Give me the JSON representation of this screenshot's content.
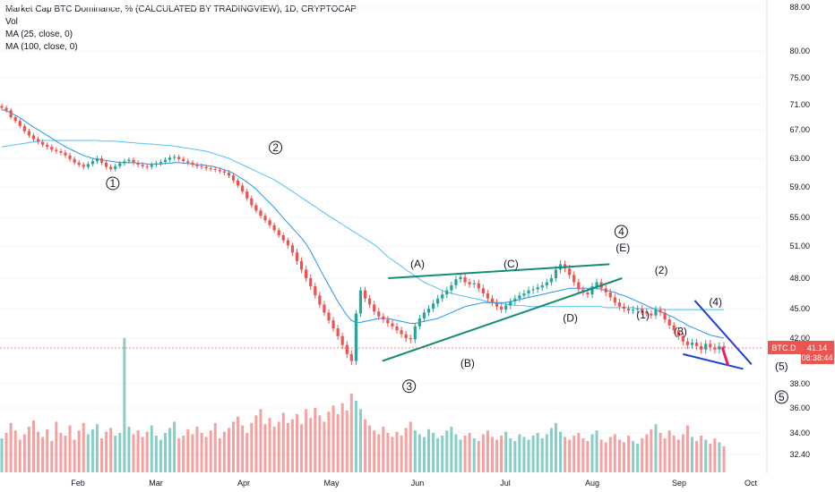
{
  "legend": {
    "title": "Market Cap BTC Dominance, % (CALCULATED BY TRADINGVIEW), 1D, CRYPTOCAP",
    "vol": "Vol",
    "ma25": "MA (25, close, 0)",
    "ma100": "MA (100, close, 0)"
  },
  "price_tag": {
    "symbol": "BTC.D",
    "value": "41.14",
    "countdown": "08:38:44"
  },
  "colors": {
    "up": "#26a69a",
    "down": "#ef5350",
    "ma25": "#2196f3",
    "ma100": "#4fc3f7",
    "pattern_lines": "#138d75",
    "wedge_lines": "#1e40d8",
    "projection": "#e91e63",
    "price_tag_bg": "#ef5350"
  },
  "chart_data": {
    "type": "candlestick",
    "y_axis_ticks": [
      "88.00",
      "80.00",
      "75.00",
      "71.00",
      "67.00",
      "63.00",
      "59.00",
      "55.00",
      "51.00",
      "48.00",
      "45.00",
      "42.00",
      "38.00",
      "36.00",
      "34.00",
      "32.40"
    ],
    "x_axis_ticks": [
      "Feb",
      "Mar",
      "Apr",
      "May",
      "Jun",
      "Jul",
      "Aug",
      "Sep",
      "Oct"
    ],
    "last_price": 41.14,
    "close_series": [
      70.5,
      70.1,
      69.0,
      68.4,
      67.6,
      66.8,
      66.2,
      65.7,
      65.3,
      64.9,
      64.6,
      64.2,
      64.0,
      63.8,
      63.4,
      62.9,
      62.4,
      62.1,
      61.8,
      62.2,
      62.6,
      63.0,
      62.4,
      61.8,
      61.5,
      61.9,
      62.3,
      62.6,
      62.8,
      62.4,
      62.1,
      61.9,
      61.8,
      62.1,
      62.3,
      62.5,
      62.8,
      63.1,
      63.2,
      62.9,
      62.6,
      62.4,
      62.1,
      61.9,
      61.8,
      61.6,
      61.5,
      61.4,
      61.2,
      61.0,
      60.6,
      59.9,
      59.2,
      58.4,
      57.5,
      56.6,
      55.9,
      55.2,
      54.6,
      53.9,
      53.2,
      52.5,
      51.8,
      51.1,
      50.4,
      49.6,
      48.8,
      48.0,
      47.2,
      46.3,
      45.4,
      44.6,
      43.8,
      43.0,
      42.2,
      41.4,
      40.6,
      40.0,
      44.5,
      46.8,
      46.0,
      45.4,
      44.7,
      44.2,
      43.9,
      43.5,
      43.2,
      42.8,
      42.4,
      42.0,
      41.9,
      43.2,
      44.0,
      44.6,
      45.0,
      45.5,
      46.0,
      46.4,
      46.8,
      47.3,
      47.9,
      48.1,
      47.6,
      47.4,
      47.5,
      47.0,
      46.5,
      46.0,
      45.6,
      45.2,
      44.9,
      45.3,
      45.7,
      46.0,
      46.3,
      46.5,
      46.8,
      46.9,
      47.1,
      47.3,
      47.6,
      48.0,
      48.8,
      49.3,
      48.9,
      48.3,
      47.6,
      46.9,
      46.6,
      46.4,
      47.2,
      47.6,
      47.0,
      46.6,
      46.1,
      45.6,
      45.2,
      45.0,
      44.8,
      44.9,
      45.0,
      44.7,
      44.5,
      44.3,
      44.9,
      44.6,
      43.9,
      43.3,
      42.8,
      42.2,
      41.7,
      41.4,
      41.6,
      41.3,
      41.0,
      41.5,
      41.2,
      41.0,
      41.3,
      41.14
    ],
    "volume_series": [
      33.6,
      34.0,
      34.8,
      34.2,
      33.5,
      33.9,
      34.5,
      35.0,
      34.1,
      33.7,
      34.3,
      33.4,
      34.9,
      34.0,
      33.8,
      34.6,
      33.5,
      34.2,
      34.8,
      33.9,
      34.3,
      34.7,
      33.6,
      34.1,
      34.4,
      33.8,
      34.0,
      42.0,
      34.5,
      33.9,
      34.2,
      33.7,
      34.1,
      34.6,
      33.8,
      33.5,
      34.0,
      34.4,
      34.9,
      33.6,
      33.8,
      34.3,
      33.9,
      34.5,
      34.0,
      33.7,
      34.2,
      34.8,
      33.6,
      34.1,
      34.4,
      34.9,
      35.3,
      34.6,
      34.0,
      34.8,
      35.4,
      35.9,
      34.7,
      35.2,
      34.5,
      34.9,
      35.6,
      34.8,
      35.1,
      35.5,
      34.7,
      35.9,
      35.2,
      36.0,
      35.4,
      34.9,
      35.7,
      36.2,
      35.5,
      36.4,
      35.8,
      37.2,
      36.6,
      35.9,
      35.1,
      34.6,
      34.2,
      33.9,
      34.5,
      34.0,
      33.7,
      34.1,
      33.8,
      34.4,
      34.9,
      34.2,
      33.9,
      33.7,
      34.3,
      34.0,
      33.6,
      33.8,
      34.2,
      34.5,
      33.9,
      33.5,
      33.8,
      34.0,
      33.6,
      33.4,
      33.9,
      34.2,
      33.7,
      33.5,
      33.8,
      34.1,
      33.6,
      33.4,
      33.9,
      33.7,
      33.5,
      33.8,
      34.0,
      33.6,
      33.9,
      34.4,
      34.8,
      34.1,
      33.7,
      33.5,
      33.8,
      34.0,
      33.6,
      33.4,
      33.9,
      34.2,
      33.5,
      33.3,
      33.7,
      33.9,
      33.5,
      33.3,
      33.8,
      33.4,
      33.2,
      33.6,
      33.9,
      34.3,
      34.7,
      34.0,
      33.6,
      34.2,
      33.8,
      33.5,
      33.9,
      34.6,
      33.7,
      33.4,
      33.8,
      33.5,
      33.2,
      33.6,
      33.3,
      33.0
    ],
    "ma25_series": [
      70.2,
      70.0,
      69.7,
      69.3,
      68.9,
      68.4,
      67.9,
      67.4,
      67.0,
      66.6,
      66.2,
      65.8,
      65.4,
      65.0,
      64.6,
      64.3,
      64.0,
      63.7,
      63.4,
      63.2,
      63.0,
      62.9,
      62.8,
      62.7,
      62.6,
      62.5,
      62.4,
      62.4,
      62.4,
      62.4,
      62.3,
      62.3,
      62.2,
      62.2,
      62.2,
      62.2,
      62.3,
      62.3,
      62.4,
      62.4,
      62.3,
      62.3,
      62.2,
      62.1,
      62.1,
      62.0,
      61.9,
      61.8,
      61.6,
      61.4,
      61.2,
      60.9,
      60.5,
      60.1,
      59.7,
      59.2,
      58.7,
      58.1,
      57.5,
      56.9,
      56.3,
      55.6,
      54.9,
      54.2,
      53.5,
      52.8,
      52.1,
      51.3,
      50.5,
      49.7,
      48.9,
      48.1,
      47.3,
      46.5,
      45.7,
      45.0,
      44.3,
      43.8,
      43.6,
      43.6,
      43.7,
      43.8,
      43.9,
      44.0,
      44.0,
      44.0,
      43.9,
      43.8,
      43.7,
      43.6,
      43.5,
      43.5,
      43.6,
      43.7,
      43.8,
      43.9,
      44.0,
      44.2,
      44.4,
      44.6,
      44.8,
      45.0,
      45.2,
      45.3,
      45.4,
      45.5,
      45.6,
      45.6,
      45.6,
      45.6,
      45.6,
      45.6,
      45.7,
      45.8,
      45.9,
      46.0,
      46.1,
      46.2,
      46.3,
      46.4,
      46.5,
      46.6,
      46.7,
      46.8,
      46.9,
      47.0,
      47.0,
      47.0,
      47.0,
      47.0,
      47.0,
      47.0,
      46.9,
      46.8,
      46.7,
      46.6,
      46.4,
      46.3,
      46.1,
      45.9,
      45.7,
      45.5,
      45.3,
      45.1,
      44.9,
      44.7,
      44.5,
      44.3,
      44.1,
      43.8,
      43.6,
      43.3,
      43.1,
      42.9,
      42.7,
      42.5,
      42.3,
      42.2,
      42.1,
      42.0
    ],
    "ma100_series": [
      64.6,
      64.7,
      64.8,
      64.9,
      65.0,
      65.1,
      65.2,
      65.3,
      65.4,
      65.5,
      65.5,
      65.5,
      65.5,
      65.5,
      65.5,
      65.5,
      65.5,
      65.5,
      65.5,
      65.5,
      65.5,
      65.5,
      65.4,
      65.4,
      65.4,
      65.4,
      65.3,
      65.3,
      65.2,
      65.2,
      65.1,
      65.1,
      65.0,
      65.0,
      64.9,
      64.9,
      64.8,
      64.8,
      64.7,
      64.6,
      64.5,
      64.4,
      64.3,
      64.2,
      64.1,
      64.0,
      63.8,
      63.6,
      63.4,
      63.2,
      63.0,
      62.7,
      62.4,
      62.1,
      61.8,
      61.5,
      61.2,
      60.9,
      60.6,
      60.3,
      60.0,
      59.6,
      59.2,
      58.8,
      58.4,
      58.0,
      57.6,
      57.2,
      56.8,
      56.4,
      56.0,
      55.6,
      55.2,
      54.8,
      54.4,
      54.0,
      53.6,
      53.2,
      52.8,
      52.4,
      52.0,
      51.6,
      51.2,
      50.8,
      50.4,
      50.0,
      49.7,
      49.4,
      49.1,
      48.8,
      48.5,
      48.2,
      47.9,
      47.6,
      47.4,
      47.2,
      47.0,
      46.8,
      46.6,
      46.5,
      46.4,
      46.3,
      46.2,
      46.1,
      46.0,
      45.9,
      45.8,
      45.7,
      45.6,
      45.5,
      45.5,
      45.4,
      45.4,
      45.3,
      45.3,
      45.3,
      45.2,
      45.2,
      45.2,
      45.2,
      45.2,
      45.2,
      45.2,
      45.2,
      45.2,
      45.2,
      45.2,
      45.2,
      45.2,
      45.2,
      45.2,
      45.2,
      45.2,
      45.1,
      45.1,
      45.1,
      45.1,
      45.1,
      45.1,
      45.1,
      45.0,
      45.0,
      45.0,
      45.0,
      45.0,
      45.0,
      44.9,
      44.9,
      44.9,
      44.9,
      44.9,
      44.9,
      44.9,
      44.9,
      44.9,
      44.9,
      44.9,
      44.9,
      44.9,
      44.9
    ],
    "wave_labels": [
      {
        "text": "1",
        "circled": true,
        "t": 0.135,
        "v": 59.0
      },
      {
        "text": "2",
        "circled": true,
        "t": 0.33,
        "v": 64.0
      },
      {
        "text": "3",
        "circled": true,
        "t": 0.49,
        "v": 37.5
      },
      {
        "text": "4",
        "circled": true,
        "t": 0.744,
        "v": 52.5
      },
      {
        "text": "5",
        "circled": true,
        "t": 0.936,
        "v": 36.6
      },
      {
        "text": "(A)",
        "circled": false,
        "t": 0.5,
        "v": 49.0
      },
      {
        "text": "(B)",
        "circled": false,
        "t": 0.56,
        "v": 39.5
      },
      {
        "text": "(C)",
        "circled": false,
        "t": 0.612,
        "v": 49.0
      },
      {
        "text": "(D)",
        "circled": false,
        "t": 0.683,
        "v": 43.7
      },
      {
        "text": "(E)",
        "circled": false,
        "t": 0.746,
        "v": 50.5
      },
      {
        "text": "(1)",
        "circled": false,
        "t": 0.77,
        "v": 44.0
      },
      {
        "text": "(2)",
        "circled": false,
        "t": 0.792,
        "v": 48.4
      },
      {
        "text": "(3)",
        "circled": false,
        "t": 0.815,
        "v": 42.3
      },
      {
        "text": "(4)",
        "circled": false,
        "t": 0.857,
        "v": 45.3
      },
      {
        "text": "(5)",
        "circled": false,
        "t": 0.936,
        "v": 39.2
      }
    ]
  }
}
